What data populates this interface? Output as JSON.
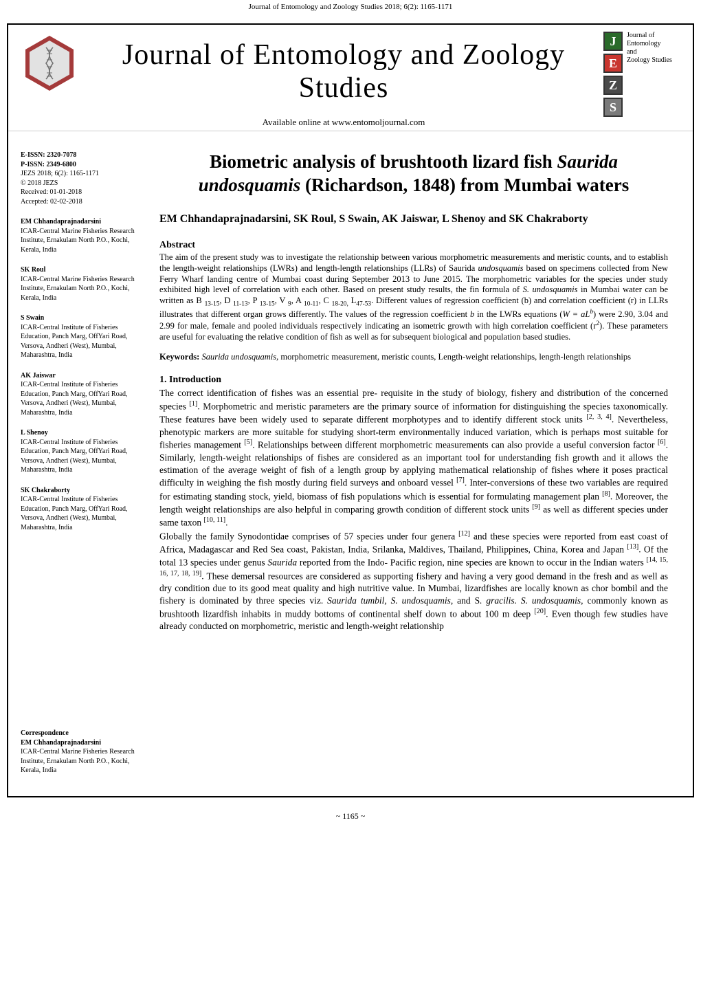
{
  "running_header": "Journal of Entomology and Zoology Studies 2018; 6(2): 1165-1171",
  "journal_title": "Journal of Entomology and Zoology Studies",
  "available_line": "Available online at www.entomoljournal.com",
  "badge": {
    "letters": [
      "J",
      "E",
      "Z",
      "S"
    ],
    "text_lines": [
      "Journal of",
      "Entomology",
      "and",
      "Zoology Studies"
    ]
  },
  "sidebar": {
    "issn_block": {
      "e_issn": "E-ISSN: 2320-7078",
      "p_issn": "P-ISSN: 2349-6800",
      "cite": "JEZS 2018; 6(2): 1165-1171",
      "copyright": "© 2018 JEZS",
      "received": "Received: 01-01-2018",
      "accepted": "Accepted: 02-02-2018"
    },
    "authors": [
      {
        "name": "EM Chhandaprajnadarsini",
        "affil": "ICAR-Central Marine Fisheries Research Institute, Ernakulam North P.O., Kochi, Kerala, India"
      },
      {
        "name": "SK Roul",
        "affil": "ICAR-Central Marine Fisheries Research Institute, Ernakulam North P.O., Kochi, Kerala, India"
      },
      {
        "name": "S Swain",
        "affil": "ICAR-Central Institute of Fisheries Education, Panch Marg, OffYari Road, Versova, Andheri (West), Mumbai, Maharashtra, India"
      },
      {
        "name": "AK Jaiswar",
        "affil": "ICAR-Central Institute of Fisheries Education, Panch Marg, OffYari Road, Versova, Andheri (West), Mumbai, Maharashtra, India"
      },
      {
        "name": "L Shenoy",
        "affil": "ICAR-Central Institute of Fisheries Education, Panch Marg, OffYari Road, Versova, Andheri (West), Mumbai, Maharashtra, India"
      },
      {
        "name": "SK Chakraborty",
        "affil": "ICAR-Central Institute of Fisheries Education, Panch Marg, OffYari Road, Versova, Andheri (West), Mumbai, Maharashtra, India"
      }
    ],
    "correspondence": {
      "label": "Correspondence",
      "name": "EM Chhandaprajnadarsini",
      "affil": "ICAR-Central Marine Fisheries Research Institute, Ernakulam North P.O., Kochi, Kerala, India"
    }
  },
  "article": {
    "title_pre": "Biometric analysis of brushtooth lizard fish ",
    "title_species": "Saurida undosquamis",
    "title_post": " (Richardson, 1848) from Mumbai waters",
    "byline": "EM Chhandaprajnadarsini, SK Roul, S Swain, AK Jaiswar, L Shenoy and SK Chakraborty",
    "abstract_label": "Abstract",
    "abstract_html": "The aim of the present study was to investigate the relationship between various morphometric measurements and meristic counts, and to establish the length-weight relationships (LWRs) and length-length relationships (LLRs) of Saurida <span class='ital'>undosquamis</span> based on specimens collected from New Ferry Wharf landing centre of Mumbai coast during September 2013 to June 2015. The morphometric variables for the species under study exhibited high level of correlation with each other. Based on present study results, the fin formula of <span class='ital'>S. undosquamis</span> in Mumbai water can be written as B <sub>13-15</sub>, D <sub>11-13</sub>, P <sub>13-15</sub>, V <sub>9</sub>, A <sub>10-11</sub>, C <sub>18-20,</sub> L<sub>47-53</sub>. Different values of regression coefficient (b) and correlation coefficient (r) in LLRs illustrates that different organ grows differently. The values of the regression coefficient <span class='ital'>b</span> in the LWRs equations (<span class='ital'>W = aL<sup>b</sup></span>) were 2.90, 3.04 and 2.99 for male, female and pooled individuals respectively indicating an isometric growth with high correlation coefficient (r<sup>2</sup>). These parameters are useful for evaluating the relative condition of fish as well as for subsequent biological and population based studies.",
    "keywords_label": "Keywords:",
    "keywords_html": " <span class='ital'>Saurida undosquamis,</span> morphometric measurement, meristic counts, Length-weight relationships, length-length relationships",
    "intro_label": "1. Introduction",
    "intro_html": "The correct identification of fishes was an essential pre- requisite in the study of biology, fishery and distribution of the concerned species <sup>[1]</sup>. Morphometric and meristic parameters are the primary source of information for distinguishing the species taxonomically. These features have been widely used to separate different morphotypes and to identify different stock units <sup>[2, 3, 4]</sup>. Nevertheless, phenotypic markers are more suitable for studying short-term environmentally induced variation, which is perhaps most suitable for fisheries management <sup>[5]</sup>. Relationships between different morphometric measurements can also provide a useful conversion factor <sup>[6]</sup>. Similarly, length-weight relationships of fishes are considered as an important tool for understanding fish growth and it allows the estimation of the average weight of fish of a length group by applying mathematical relationship of fishes where it poses practical difficulty in weighing the fish mostly during field surveys and onboard vessel <sup>[7]</sup>. Inter-conversions of these two variables are required for estimating standing stock, yield, biomass of fish populations which is essential for formulating management plan <sup>[8]</sup>. Moreover, the length weight relationships are also helpful in comparing growth condition of different stock units <sup>[9]</sup> as well as different species under same taxon <sup>[10, 11]</sup>.<br>Globally the family Synodontidae comprises of 57 species under four genera <sup>[12]</sup> and these species were reported from east coast of Africa, Madagascar and Red Sea coast, Pakistan, India, Srilanka, Maldives, Thailand, Philippines, China, Korea and Japan <sup>[13]</sup>. Of the total 13 species under genus <span class='ital'>Saurida</span> reported from the Indo- Pacific region, nine species are known to occur in the Indian waters <sup>[14, 15, 16, 17, 18, 19]</sup>. These demersal resources are considered as supporting fishery and having a very good demand in the fresh and as well as dry condition due to its good meat quality and high nutritive value. In Mumbai, lizardfishes are locally known as chor bombil and the fishery is dominated by three species viz. <span class='ital'>Saurida tumbil, S. undosquamis,</span> and S<span class='ital'>. gracilis. S. undosquamis,</span> commonly known as brushtooth lizardfish inhabits in muddy bottoms of continental shelf down to about 100 m deep <sup>[20]</sup>. Even though few studies have already conducted on morphometric, meristic and length-weight relationship"
  },
  "page_number": "~ 1165 ~",
  "colors": {
    "hex_outer": "#a43a3a",
    "hex_inner": "#e2e2e2",
    "badge_J": "#2a6a2a",
    "badge_E": "#c9362f",
    "badge_Z": "#4a4a4a",
    "badge_S": "#7a7a7a"
  }
}
